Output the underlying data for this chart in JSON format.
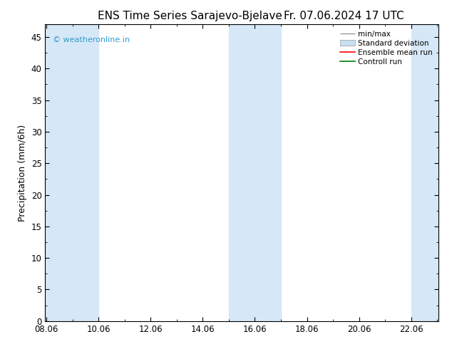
{
  "title_left": "ENS Time Series Sarajevo-Bjelave",
  "title_right": "Fr. 07.06.2024 17 UTC",
  "ylabel": "Precipitation (mm/6h)",
  "ylim": [
    0,
    47
  ],
  "yticks": [
    0,
    5,
    10,
    15,
    20,
    25,
    30,
    35,
    40,
    45
  ],
  "xtick_labels": [
    "08.06",
    "10.06",
    "12.06",
    "14.06",
    "16.06",
    "18.06",
    "20.06",
    "22.06"
  ],
  "xtick_positions": [
    0,
    2,
    4,
    6,
    8,
    10,
    12,
    14
  ],
  "xlim": [
    -0.05,
    15.05
  ],
  "shaded_bands": [
    {
      "x_start": -0.1,
      "x_end": 1.0
    },
    {
      "x_start": 1.0,
      "x_end": 2.0
    },
    {
      "x_start": 7.0,
      "x_end": 8.0
    },
    {
      "x_start": 8.0,
      "x_end": 9.0
    },
    {
      "x_start": 14.0,
      "x_end": 15.1
    }
  ],
  "shade_color": "#d6e8f7",
  "background_color": "#ffffff",
  "plot_bg_color": "#ffffff",
  "watermark": "© weatheronline.in",
  "watermark_color": "#3399cc",
  "legend_labels": [
    "min/max",
    "Standard deviation",
    "Ensemble mean run",
    "Controll run"
  ],
  "legend_colors": [
    "#999999",
    "#c8dff0",
    "#ff0000",
    "#008000"
  ],
  "title_fontsize": 11,
  "tick_fontsize": 8.5,
  "ylabel_fontsize": 9
}
